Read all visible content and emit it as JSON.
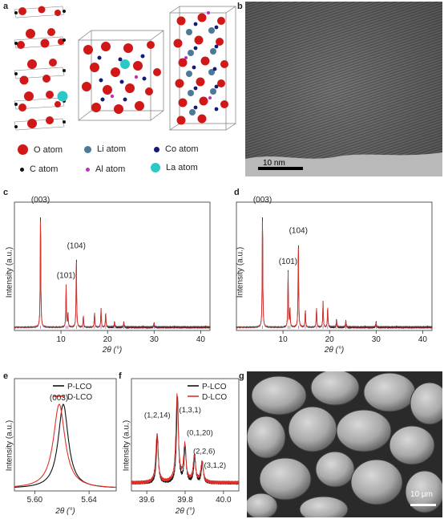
{
  "panels": {
    "a": {
      "letter": "a",
      "legend": [
        {
          "label": "O atom",
          "color": "#d01818"
        },
        {
          "label": "Li atom",
          "color": "#4a7a98"
        },
        {
          "label": "Co atom",
          "color": "#141a78"
        },
        {
          "label": "C atom",
          "color": "#111111"
        },
        {
          "label": "Al atom",
          "color": "#c030c0"
        },
        {
          "label": "La atom",
          "color": "#2cc8c8"
        }
      ]
    },
    "b": {
      "letter": "b",
      "scale_bar": "10 nm"
    },
    "c": {
      "letter": "c",
      "ylabel": "Intensity (a.u.)",
      "xlabel": "2θ (°)",
      "xticks": [
        "10",
        "20",
        "30",
        "40"
      ],
      "peak_labels": [
        "(003)",
        "(101)",
        "(104)"
      ]
    },
    "d": {
      "letter": "d",
      "ylabel": "Intensity (a.u.)",
      "xlabel": "2θ (°)",
      "xticks": [
        "10",
        "20",
        "30",
        "40"
      ],
      "peak_labels": [
        "(003)",
        "(101)",
        "(104)"
      ]
    },
    "e": {
      "letter": "e",
      "ylabel": "Intensity (a.u.)",
      "xlabel": "2θ (°)",
      "xticks": [
        "5.60",
        "5.64"
      ],
      "peak_label": "(003)",
      "legend": [
        {
          "label": "P-LCO",
          "color": "#111111"
        },
        {
          "label": "D-LCO",
          "color": "#e0302a"
        }
      ]
    },
    "f": {
      "letter": "f",
      "ylabel": "Intensity (a.u.)",
      "xlabel": "2θ (°)",
      "xticks": [
        "39.6",
        "39.8",
        "40.0"
      ],
      "peak_labels": [
        "(1,2,14)",
        "(1,3,1)",
        "(0,1,20)",
        "(2,2,6)",
        "(3,1,2)"
      ],
      "legend": [
        {
          "label": "P-LCO",
          "color": "#111111"
        },
        {
          "label": "D-LCO",
          "color": "#e0302a"
        }
      ]
    },
    "g": {
      "letter": "g",
      "scale_bar": "10 μm"
    }
  },
  "chart_data": [
    {
      "type": "line",
      "panel": "c",
      "title": "",
      "xlabel": "2θ (°)",
      "ylabel": "Intensity (a.u.)",
      "xlim": [
        0,
        42
      ],
      "peaks": [
        {
          "x": 5.6,
          "y": 1.0,
          "label": "(003)"
        },
        {
          "x": 11.1,
          "y": 0.36,
          "label": "(101)"
        },
        {
          "x": 11.5,
          "y": 0.12
        },
        {
          "x": 13.3,
          "y": 0.61,
          "label": "(104)"
        },
        {
          "x": 14.8,
          "y": 0.1
        },
        {
          "x": 17.2,
          "y": 0.13
        },
        {
          "x": 18.6,
          "y": 0.16
        },
        {
          "x": 19.6,
          "y": 0.13
        },
        {
          "x": 21.5,
          "y": 0.05
        },
        {
          "x": 23.5,
          "y": 0.05
        },
        {
          "x": 30.0,
          "y": 0.04
        }
      ],
      "series": [
        {
          "name": "",
          "color": "#e0302a"
        },
        {
          "name": "",
          "color": "#111111"
        }
      ]
    },
    {
      "type": "line",
      "panel": "d",
      "title": "",
      "xlabel": "2θ (°)",
      "ylabel": "Intensity (a.u.)",
      "xlim": [
        0,
        42
      ],
      "peaks": [
        {
          "x": 5.6,
          "y": 1.0,
          "label": "(003)"
        },
        {
          "x": 11.1,
          "y": 0.48,
          "label": "(101)"
        },
        {
          "x": 11.5,
          "y": 0.16
        },
        {
          "x": 13.3,
          "y": 0.74,
          "label": "(104)"
        },
        {
          "x": 14.8,
          "y": 0.15
        },
        {
          "x": 17.2,
          "y": 0.17
        },
        {
          "x": 18.6,
          "y": 0.22
        },
        {
          "x": 19.6,
          "y": 0.18
        },
        {
          "x": 21.5,
          "y": 0.07
        },
        {
          "x": 23.5,
          "y": 0.06
        },
        {
          "x": 30.0,
          "y": 0.05
        }
      ],
      "series": [
        {
          "name": "",
          "color": "#e0302a"
        },
        {
          "name": "",
          "color": "#111111"
        }
      ]
    },
    {
      "type": "line",
      "panel": "e",
      "title": "",
      "xlabel": "2θ (°)",
      "ylabel": "Intensity (a.u.)",
      "xlim": [
        5.585,
        5.66
      ],
      "series": [
        {
          "name": "P-LCO",
          "color": "#111111",
          "center": 5.621,
          "width": 0.0045
        },
        {
          "name": "D-LCO",
          "color": "#e0302a",
          "center": 5.618,
          "width": 0.0052
        }
      ],
      "peak_label": "(003)"
    },
    {
      "type": "line",
      "panel": "f",
      "title": "",
      "xlabel": "2θ (°)",
      "ylabel": "Intensity (a.u.)",
      "xlim": [
        39.52,
        40.08
      ],
      "peaks": [
        {
          "x": 39.655,
          "y": 0.55,
          "label": "(1,2,14)"
        },
        {
          "x": 39.76,
          "y": 1.0,
          "label": "(1,3,1)"
        },
        {
          "x": 39.8,
          "y": 0.42,
          "label": "(0,1,20)"
        },
        {
          "x": 39.85,
          "y": 0.3,
          "label": "(2,2,6)"
        },
        {
          "x": 39.89,
          "y": 0.23,
          "label": "(3,1,2)"
        }
      ],
      "series": [
        {
          "name": "P-LCO",
          "color": "#111111"
        },
        {
          "name": "D-LCO",
          "color": "#e0302a"
        }
      ]
    }
  ]
}
